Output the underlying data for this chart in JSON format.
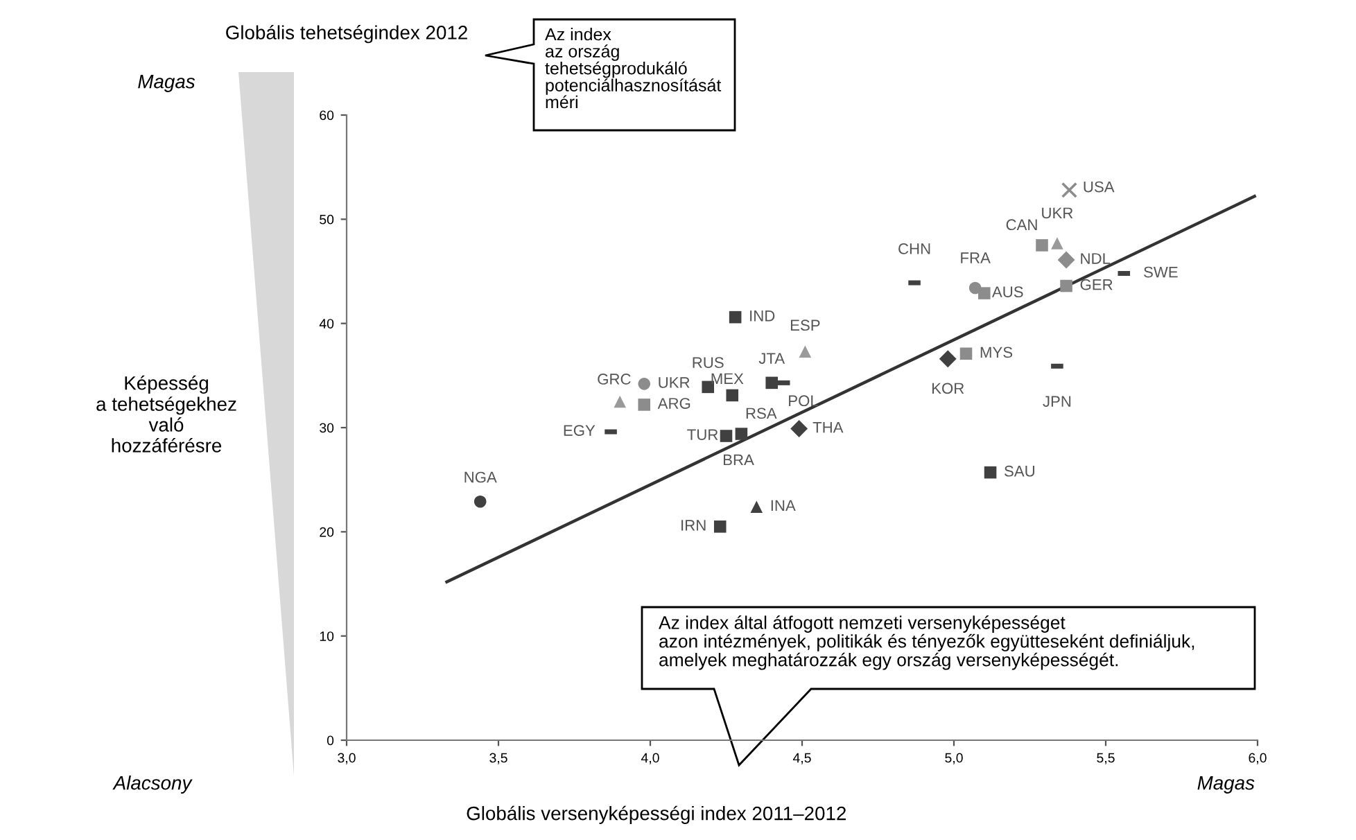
{
  "chart_data": {
    "type": "scatter",
    "xlabel": "Globális versenyképességi index 2011–2012",
    "ylabel": "Globális tehetségindex 2012",
    "xlim": [
      3.0,
      6.0
    ],
    "ylim": [
      0,
      60
    ],
    "xticks": [
      {
        "value": 3.0,
        "label": "3,0"
      },
      {
        "value": 3.5,
        "label": "3,5"
      },
      {
        "value": 4.0,
        "label": "4,0"
      },
      {
        "value": 4.5,
        "label": "4,5"
      },
      {
        "value": 5.0,
        "label": "5,0"
      },
      {
        "value": 5.5,
        "label": "5,5"
      },
      {
        "value": 6.0,
        "label": "6,0"
      }
    ],
    "yticks": [
      0,
      10,
      20,
      30,
      40,
      50,
      60
    ],
    "grid": false,
    "legend": false,
    "series": [
      {
        "marker": "square",
        "color": "#404040",
        "x": [
          4.28,
          4.19,
          4.27,
          4.4,
          4.23,
          5.12,
          4.25,
          4.3
        ],
        "values": [
          40.6,
          33.9,
          33.1,
          34.3,
          20.5,
          25.7,
          29.2,
          29.4
        ]
      },
      {
        "marker": "square",
        "color": "#8c8c8c",
        "x": [
          3.98,
          5.29,
          5.1,
          5.37,
          5.04
        ],
        "values": [
          32.2,
          47.5,
          42.9,
          43.6,
          37.1
        ]
      },
      {
        "marker": "triangle",
        "color": "#9a9a9a",
        "x": [
          3.9,
          4.51,
          5.34
        ],
        "values": [
          32.5,
          37.3,
          47.7
        ]
      },
      {
        "marker": "triangle",
        "color": "#404040",
        "x": [
          4.35
        ],
        "values": [
          22.4
        ]
      },
      {
        "marker": "circle",
        "color": "#404040",
        "x": [
          3.44
        ],
        "values": [
          22.9
        ]
      },
      {
        "marker": "circle",
        "color": "#8c8c8c",
        "x": [
          3.98,
          5.07
        ],
        "values": [
          34.2,
          43.4
        ]
      },
      {
        "marker": "diamond",
        "color": "#404040",
        "x": [
          4.49,
          4.98
        ],
        "values": [
          29.9,
          36.6
        ]
      },
      {
        "marker": "diamond",
        "color": "#8c8c8c",
        "x": [
          5.37
        ],
        "values": [
          46.1
        ]
      },
      {
        "color": "#404040",
        "x": [
          3.87,
          4.87,
          4.44,
          5.56,
          5.34
        ],
        "values": [
          29.6,
          43.9,
          34.3,
          44.8,
          35.9
        ]
      },
      {
        "marker": "cross",
        "color": "#8c8c8c",
        "x": [
          5.38
        ],
        "values": [
          52.8
        ]
      },
      {
        "type": "line",
        "marker": "none",
        "color": "#333333",
        "x": [
          3.33,
          5.99
        ],
        "values": [
          15.2,
          52.2
        ]
      }
    ],
    "annotations": [
      {
        "text": "NGA",
        "x": 3.44,
        "y": 22.9
      },
      {
        "text": "IRN",
        "x": 4.23,
        "y": 20.5
      },
      {
        "text": "INA",
        "x": 4.35,
        "y": 22.4
      },
      {
        "text": "GRC",
        "x": 3.9,
        "y": 32.5
      },
      {
        "text": "UKR",
        "x": 3.98,
        "y": 34.2
      },
      {
        "text": "ARG",
        "x": 3.98,
        "y": 32.2
      },
      {
        "text": "EGY",
        "x": 3.87,
        "y": 29.6
      },
      {
        "text": "IND",
        "x": 4.28,
        "y": 40.6
      },
      {
        "text": "RUS",
        "x": 4.19,
        "y": 33.9
      },
      {
        "text": "MEX",
        "x": 4.27,
        "y": 33.1
      },
      {
        "text": "JTA",
        "x": 4.4,
        "y": 34.3
      },
      {
        "text": "POL",
        "x": 4.44,
        "y": 34.3
      },
      {
        "text": "TUR",
        "x": 4.25,
        "y": 29.2
      },
      {
        "text": "RSA",
        "x": 4.3,
        "y": 29.4
      },
      {
        "text": "BRA",
        "x": 4.29,
        "y": 29.0
      },
      {
        "text": "ESP",
        "x": 4.51,
        "y": 37.3
      },
      {
        "text": "THA",
        "x": 4.49,
        "y": 29.9
      },
      {
        "text": "USA",
        "x": 5.38,
        "y": 52.8
      },
      {
        "text": "CAN",
        "x": 5.29,
        "y": 47.5
      },
      {
        "text": "UKR",
        "x": 5.34,
        "y": 47.7
      },
      {
        "text": "NDL",
        "x": 5.37,
        "y": 46.1
      },
      {
        "text": "SWE",
        "x": 5.56,
        "y": 44.8
      },
      {
        "text": "GER",
        "x": 5.37,
        "y": 43.6
      },
      {
        "text": "CHN",
        "x": 4.87,
        "y": 43.9
      },
      {
        "text": "FRA",
        "x": 5.07,
        "y": 43.4
      },
      {
        "text": "AUS",
        "x": 5.1,
        "y": 42.9
      },
      {
        "text": "KOR",
        "x": 4.98,
        "y": 36.6
      },
      {
        "text": "MYS",
        "x": 5.04,
        "y": 37.1
      },
      {
        "text": "JPN",
        "x": 5.34,
        "y": 35.9
      },
      {
        "text": "SAU",
        "x": 5.12,
        "y": 25.7
      },
      "Magas",
      "Képesség\na tehetségekhez\nvaló\nhozzáférésre",
      "Alacsony",
      "Magas",
      "Az index\naz ország\ntehetségprodukáló\npotenciálhasznosítását\nméri",
      "Az index által átfogott nemzeti versenyképességet\nazon intézmények, politikák és tényezők együtteseként definiáljuk,\namelyek meghatározzák egy ország versenyképességét."
    ]
  }
}
